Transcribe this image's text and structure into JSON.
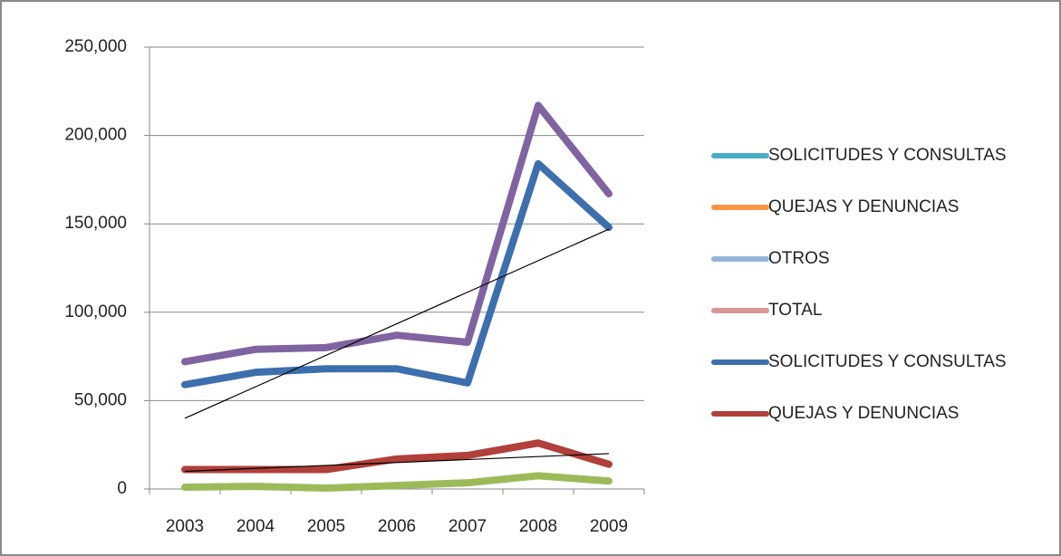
{
  "chart_data": {
    "type": "line",
    "categories": [
      "2003",
      "2004",
      "2005",
      "2006",
      "2007",
      "2008",
      "2009"
    ],
    "series": [
      {
        "name": "SOLICITUDES Y CONSULTAS",
        "color": "#4bacc6",
        "values": [
          null,
          null,
          null,
          null,
          null,
          null,
          null
        ]
      },
      {
        "name": "QUEJAS Y DENUNCIAS",
        "color": "#f79646",
        "values": [
          null,
          null,
          null,
          null,
          null,
          null,
          null
        ]
      },
      {
        "name": "OTROS",
        "color": "#95b3d7",
        "values": [
          null,
          null,
          null,
          null,
          null,
          null,
          null
        ]
      },
      {
        "name": "TOTAL",
        "color": "#d99694",
        "values": [
          null,
          null,
          null,
          null,
          null,
          null,
          null
        ]
      },
      {
        "name": "SOLICITUDES Y CONSULTAS",
        "color": "#3d6fae",
        "values": [
          59000,
          66000,
          68000,
          68000,
          60000,
          184000,
          148000
        ]
      },
      {
        "name": "QUEJAS Y DENUNCIAS",
        "color": "#b13f3a",
        "values": [
          11000,
          11000,
          11000,
          17000,
          19000,
          26000,
          14000
        ]
      },
      {
        "color": "#8064a2",
        "values": [
          72000,
          79000,
          80000,
          87000,
          83000,
          217000,
          167000
        ]
      },
      {
        "color": "#9bbb59",
        "values": [
          1000,
          1500,
          500,
          2000,
          3500,
          7500,
          4500
        ]
      }
    ],
    "trendlines": [
      {
        "color": "#000000",
        "values": [
          40000,
          147000
        ]
      },
      {
        "color": "#000000",
        "values": [
          10000,
          20000
        ]
      }
    ],
    "ylim": [
      0,
      250000
    ],
    "yticks": [
      0,
      {
        "value": 50000,
        "label": "50,000"
      },
      {
        "value": 100000,
        "label": "100,000"
      },
      {
        "value": 150000,
        "label": "150,000"
      },
      {
        "value": 200000,
        "label": "200,000"
      },
      {
        "value": 250000,
        "label": "250,000"
      }
    ],
    "grid": true,
    "legend": "right"
  }
}
